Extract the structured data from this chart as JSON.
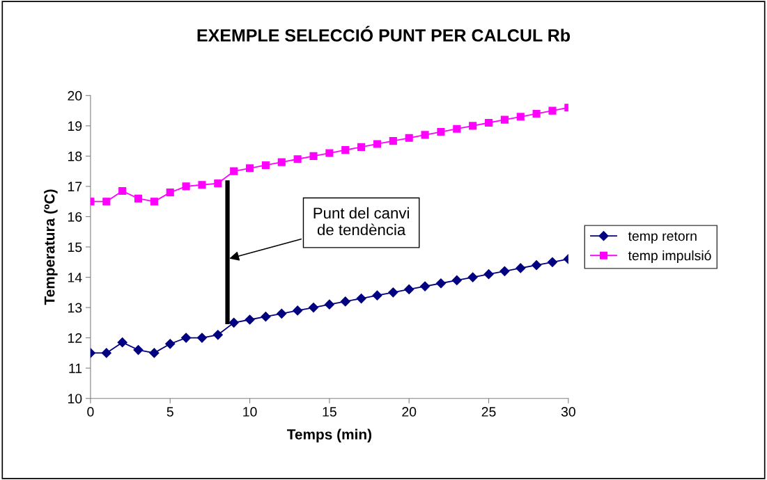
{
  "chart_data": {
    "type": "line",
    "title": "EXEMPLE SELECCIÓ PUNT PER CALCUL Rb",
    "xlabel": "Temps (min)",
    "ylabel": "Temperatura (ºC)",
    "x": [
      0,
      1,
      2,
      3,
      4,
      5,
      6,
      7,
      8,
      9,
      10,
      11,
      12,
      13,
      14,
      15,
      16,
      17,
      18,
      19,
      20,
      21,
      22,
      23,
      24,
      25,
      26,
      27,
      28,
      29,
      30
    ],
    "series": [
      {
        "name": "temp retorn",
        "color": "#000080",
        "marker": "diamond",
        "values": [
          11.5,
          11.5,
          11.85,
          11.6,
          11.5,
          11.8,
          12.0,
          12.0,
          12.1,
          12.5,
          12.6,
          12.7,
          12.8,
          12.9,
          13.0,
          13.1,
          13.2,
          13.3,
          13.4,
          13.5,
          13.6,
          13.7,
          13.8,
          13.9,
          14.0,
          14.1,
          14.2,
          14.3,
          14.4,
          14.5,
          14.6
        ]
      },
      {
        "name": "temp impulsió",
        "color": "#ff00ff",
        "marker": "square",
        "values": [
          16.5,
          16.5,
          16.85,
          16.6,
          16.5,
          16.8,
          17.0,
          17.05,
          17.1,
          17.5,
          17.6,
          17.7,
          17.8,
          17.9,
          18.0,
          18.1,
          18.2,
          18.3,
          18.4,
          18.5,
          18.6,
          18.7,
          18.8,
          18.9,
          19.0,
          19.1,
          19.2,
          19.3,
          19.4,
          19.5,
          19.6
        ]
      },
      {
        "color": "#000000",
        "marker": "none",
        "x": [
          8.6,
          8.6
        ],
        "values": [
          12.45,
          17.2
        ]
      }
    ],
    "annotations": [
      {
        "text": "Punt del canvi\nde tendència",
        "x": 8.6,
        "y": 14.6
      }
    ],
    "xlim": [
      0,
      30
    ],
    "xticks": [
      0,
      5,
      10,
      15,
      20,
      25,
      30
    ],
    "ylim": [
      10,
      20
    ],
    "yticks": [
      10,
      11,
      12,
      13,
      14,
      15,
      16,
      17,
      18,
      19,
      20
    ],
    "grid": false,
    "legend": "right",
    "line_style": "solid"
  }
}
